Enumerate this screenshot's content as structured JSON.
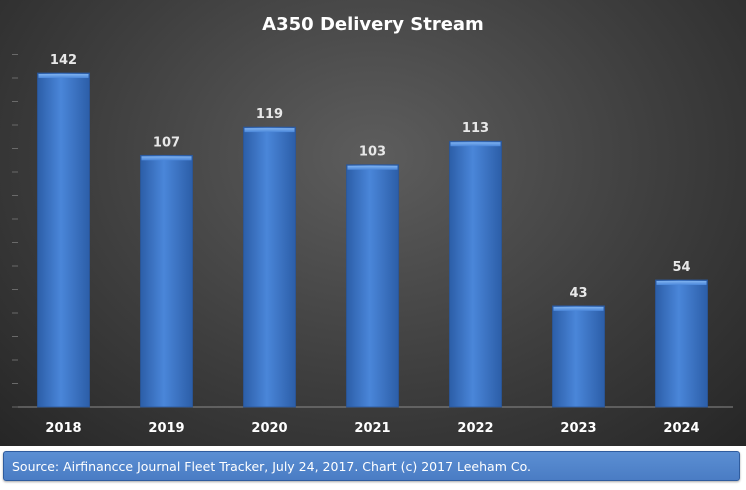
{
  "chart_data": {
    "type": "bar",
    "title": "A350 Delivery Stream",
    "categories": [
      "2018",
      "2019",
      "2020",
      "2021",
      "2022",
      "2023",
      "2024"
    ],
    "values": [
      142,
      107,
      119,
      103,
      113,
      43,
      54
    ],
    "xlabel": "",
    "ylabel": "",
    "ylim": [
      0,
      160
    ],
    "grid": false,
    "legend": "none",
    "data_labels": true,
    "colors": {
      "bar": "#4a86d9",
      "bar_dark": "#2c5ea8",
      "bar_light": "#7fb2f0",
      "text": "#ffffff",
      "label": "#e8e8e8"
    }
  },
  "source_note": "Source: Airfinancce Journal Fleet Tracker, July 24, 2017. Chart (c) 2017 Leeham Co."
}
